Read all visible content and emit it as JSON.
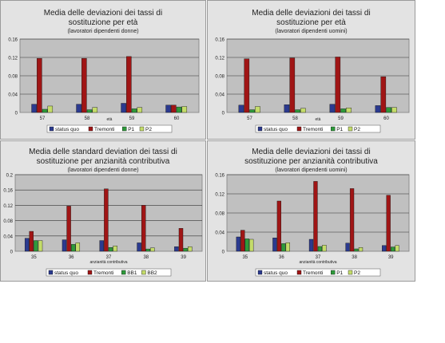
{
  "colors": {
    "status_quo": "#2b3a8f",
    "tremonti": "#a01515",
    "p1": "#2e9a3a",
    "p2": "#c4dc6a",
    "panel_bg": "#e3e3e3",
    "plot_bg": "#c0c0c0"
  },
  "chart_data": [
    {
      "type": "bar",
      "title_line1": "Media delle deviazioni dei tassi di",
      "title_line2": "sostituzione per età",
      "subtitle": "(lavoratori dipendenti donne)",
      "xlabel": "età",
      "categories": [
        "57",
        "58",
        "59",
        "60"
      ],
      "ylim": [
        0,
        0.16
      ],
      "yticks": [
        "0",
        "0.04",
        "0.08",
        "0.12",
        "0.16"
      ],
      "series": [
        {
          "name": "status quo",
          "color": "#2b3a8f",
          "values": [
            0.018,
            0.018,
            0.02,
            0.016
          ]
        },
        {
          "name": "Tremonti",
          "color": "#a01515",
          "values": [
            0.118,
            0.118,
            0.122,
            0.016
          ]
        },
        {
          "name": "P1",
          "color": "#2e9a3a",
          "values": [
            0.007,
            0.006,
            0.008,
            0.012
          ]
        },
        {
          "name": "P2",
          "color": "#c4dc6a",
          "values": [
            0.014,
            0.011,
            0.011,
            0.013
          ]
        }
      ]
    },
    {
      "type": "bar",
      "title_line1": "Media delle deviazioni dei tassi di",
      "title_line2": "sostituzione per età",
      "subtitle": "(lavoratori dipendenti uomini)",
      "xlabel": "età",
      "categories": [
        "57",
        "58",
        "59",
        "60"
      ],
      "ylim": [
        0,
        0.16
      ],
      "yticks": [
        "0",
        "0.04",
        "0.08",
        "0.12",
        "0.16"
      ],
      "series": [
        {
          "name": "status quo",
          "color": "#2b3a8f",
          "values": [
            0.016,
            0.017,
            0.018,
            0.015
          ]
        },
        {
          "name": "Tremonti",
          "color": "#a01515",
          "values": [
            0.117,
            0.119,
            0.121,
            0.078
          ]
        },
        {
          "name": "P1",
          "color": "#2e9a3a",
          "values": [
            0.006,
            0.006,
            0.008,
            0.011
          ]
        },
        {
          "name": "P2",
          "color": "#c4dc6a",
          "values": [
            0.013,
            0.009,
            0.01,
            0.011
          ]
        }
      ]
    },
    {
      "type": "bar",
      "title_line1": "Media delle standard deviation dei tassi di",
      "title_line2": "sostituzione per anzianità contributiva",
      "subtitle": "(lavoratori dipendenti donne)",
      "xlabel": "anzianità contributiva",
      "categories": [
        "35",
        "36",
        "37",
        "38",
        "39"
      ],
      "ylim": [
        0,
        0.2
      ],
      "yticks": [
        "0",
        "0.04",
        "0.08",
        "0.12",
        "0.16",
        "0.2"
      ],
      "series": [
        {
          "name": "status quo",
          "color": "#2b3a8f",
          "values": [
            0.034,
            0.03,
            0.028,
            0.022,
            0.012
          ]
        },
        {
          "name": "Tremonti",
          "color": "#a01515",
          "values": [
            0.052,
            0.118,
            0.163,
            0.12,
            0.06
          ]
        },
        {
          "name": "BB1",
          "color": "#2e9a3a",
          "values": [
            0.028,
            0.018,
            0.01,
            0.006,
            0.008
          ]
        },
        {
          "name": "BB2",
          "color": "#c4dc6a",
          "values": [
            0.028,
            0.022,
            0.014,
            0.009,
            0.012
          ]
        }
      ]
    },
    {
      "type": "bar",
      "title_line1": "Media delle deviazioni dei tassi di",
      "title_line2": "sostituzione per anzianità contributiva",
      "subtitle": "(lavoratori dipendenti uomini)",
      "xlabel": "anzianità contributiva",
      "categories": [
        "35",
        "36",
        "37",
        "38",
        "39"
      ],
      "ylim": [
        0,
        0.16
      ],
      "yticks": [
        "0",
        "0.04",
        "0.08",
        "0.12",
        "0.16"
      ],
      "series": [
        {
          "name": "status quo",
          "color": "#2b3a8f",
          "values": [
            0.03,
            0.028,
            0.025,
            0.017,
            0.012
          ]
        },
        {
          "name": "Tremonti",
          "color": "#a01515",
          "values": [
            0.044,
            0.105,
            0.146,
            0.131,
            0.117
          ]
        },
        {
          "name": "P1",
          "color": "#2e9a3a",
          "values": [
            0.026,
            0.016,
            0.01,
            0.005,
            0.009
          ]
        },
        {
          "name": "P2",
          "color": "#c4dc6a",
          "values": [
            0.025,
            0.018,
            0.013,
            0.008,
            0.012
          ]
        }
      ]
    }
  ]
}
